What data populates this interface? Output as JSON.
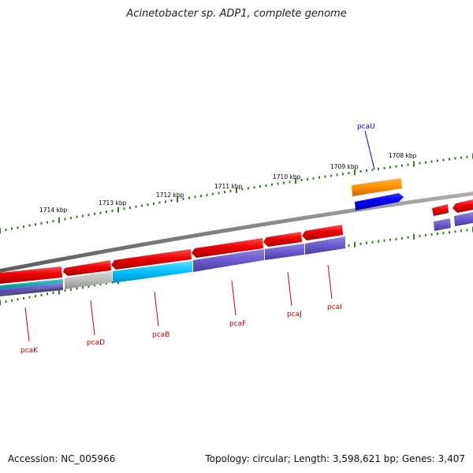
{
  "title": "Acinetobacter sp. ADP1, complete genome",
  "footer": {
    "accession": "Accession: NC_005966",
    "summary": "Topology: circular; Length: 3,598,621 bp; Genes: 3,407"
  },
  "colors": {
    "backbone": "#808080",
    "ticks": "#2e7d1f",
    "label_red": "#cc0000",
    "label_blue": "#0000cc"
  },
  "scale_labels": [
    "1714 kbp",
    "1713 kbp",
    "1712 kbp",
    "1711 kbp",
    "1710 kbp",
    "1709 kbp",
    "1708 kbp"
  ],
  "gene_labels": [
    {
      "name": "pcaK",
      "color": "#cc0000"
    },
    {
      "name": "pcaD",
      "color": "#cc0000"
    },
    {
      "name": "pcaB",
      "color": "#cc0000"
    },
    {
      "name": "pcaF",
      "color": "#cc0000"
    },
    {
      "name": "pcaJ",
      "color": "#cc0000"
    },
    {
      "name": "pcaI",
      "color": "#cc0000"
    },
    {
      "name": "pcaU",
      "color": "#0000cc"
    }
  ]
}
